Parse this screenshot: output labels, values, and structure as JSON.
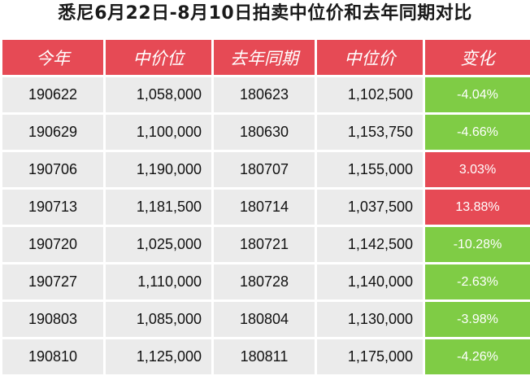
{
  "title": "悉尼6月22日-8月10日拍卖中位价和去年同期对比",
  "colors": {
    "header_bg": "#e64a55",
    "row_bg": "#ebebeb",
    "increase": "#e64a55",
    "decrease": "#7fcc45"
  },
  "columns": [
    "今年",
    "中价位",
    "去年同期",
    "中位价",
    "变化"
  ],
  "rows": [
    {
      "this_year": "190622",
      "median_this": "1,058,000",
      "last_year": "180623",
      "median_last": "1,102,500",
      "change": "-4.04%",
      "direction": "down"
    },
    {
      "this_year": "190629",
      "median_this": "1,100,000",
      "last_year": "180630",
      "median_last": "1,153,750",
      "change": "-4.66%",
      "direction": "down"
    },
    {
      "this_year": "190706",
      "median_this": "1,190,000",
      "last_year": "180707",
      "median_last": "1,155,000",
      "change": "3.03%",
      "direction": "up"
    },
    {
      "this_year": "190713",
      "median_this": "1,181,500",
      "last_year": "180714",
      "median_last": "1,037,500",
      "change": "13.88%",
      "direction": "up"
    },
    {
      "this_year": "190720",
      "median_this": "1,025,000",
      "last_year": "180721",
      "median_last": "1,142,500",
      "change": "-10.28%",
      "direction": "down"
    },
    {
      "this_year": "190727",
      "median_this": "1,110,000",
      "last_year": "180728",
      "median_last": "1,140,000",
      "change": "-2.63%",
      "direction": "down"
    },
    {
      "this_year": "190803",
      "median_this": "1,085,000",
      "last_year": "180804",
      "median_last": "1,130,000",
      "change": "-3.98%",
      "direction": "down"
    },
    {
      "this_year": "190810",
      "median_this": "1,125,000",
      "last_year": "180811",
      "median_last": "1,175,000",
      "change": "-4.26%",
      "direction": "down"
    }
  ]
}
